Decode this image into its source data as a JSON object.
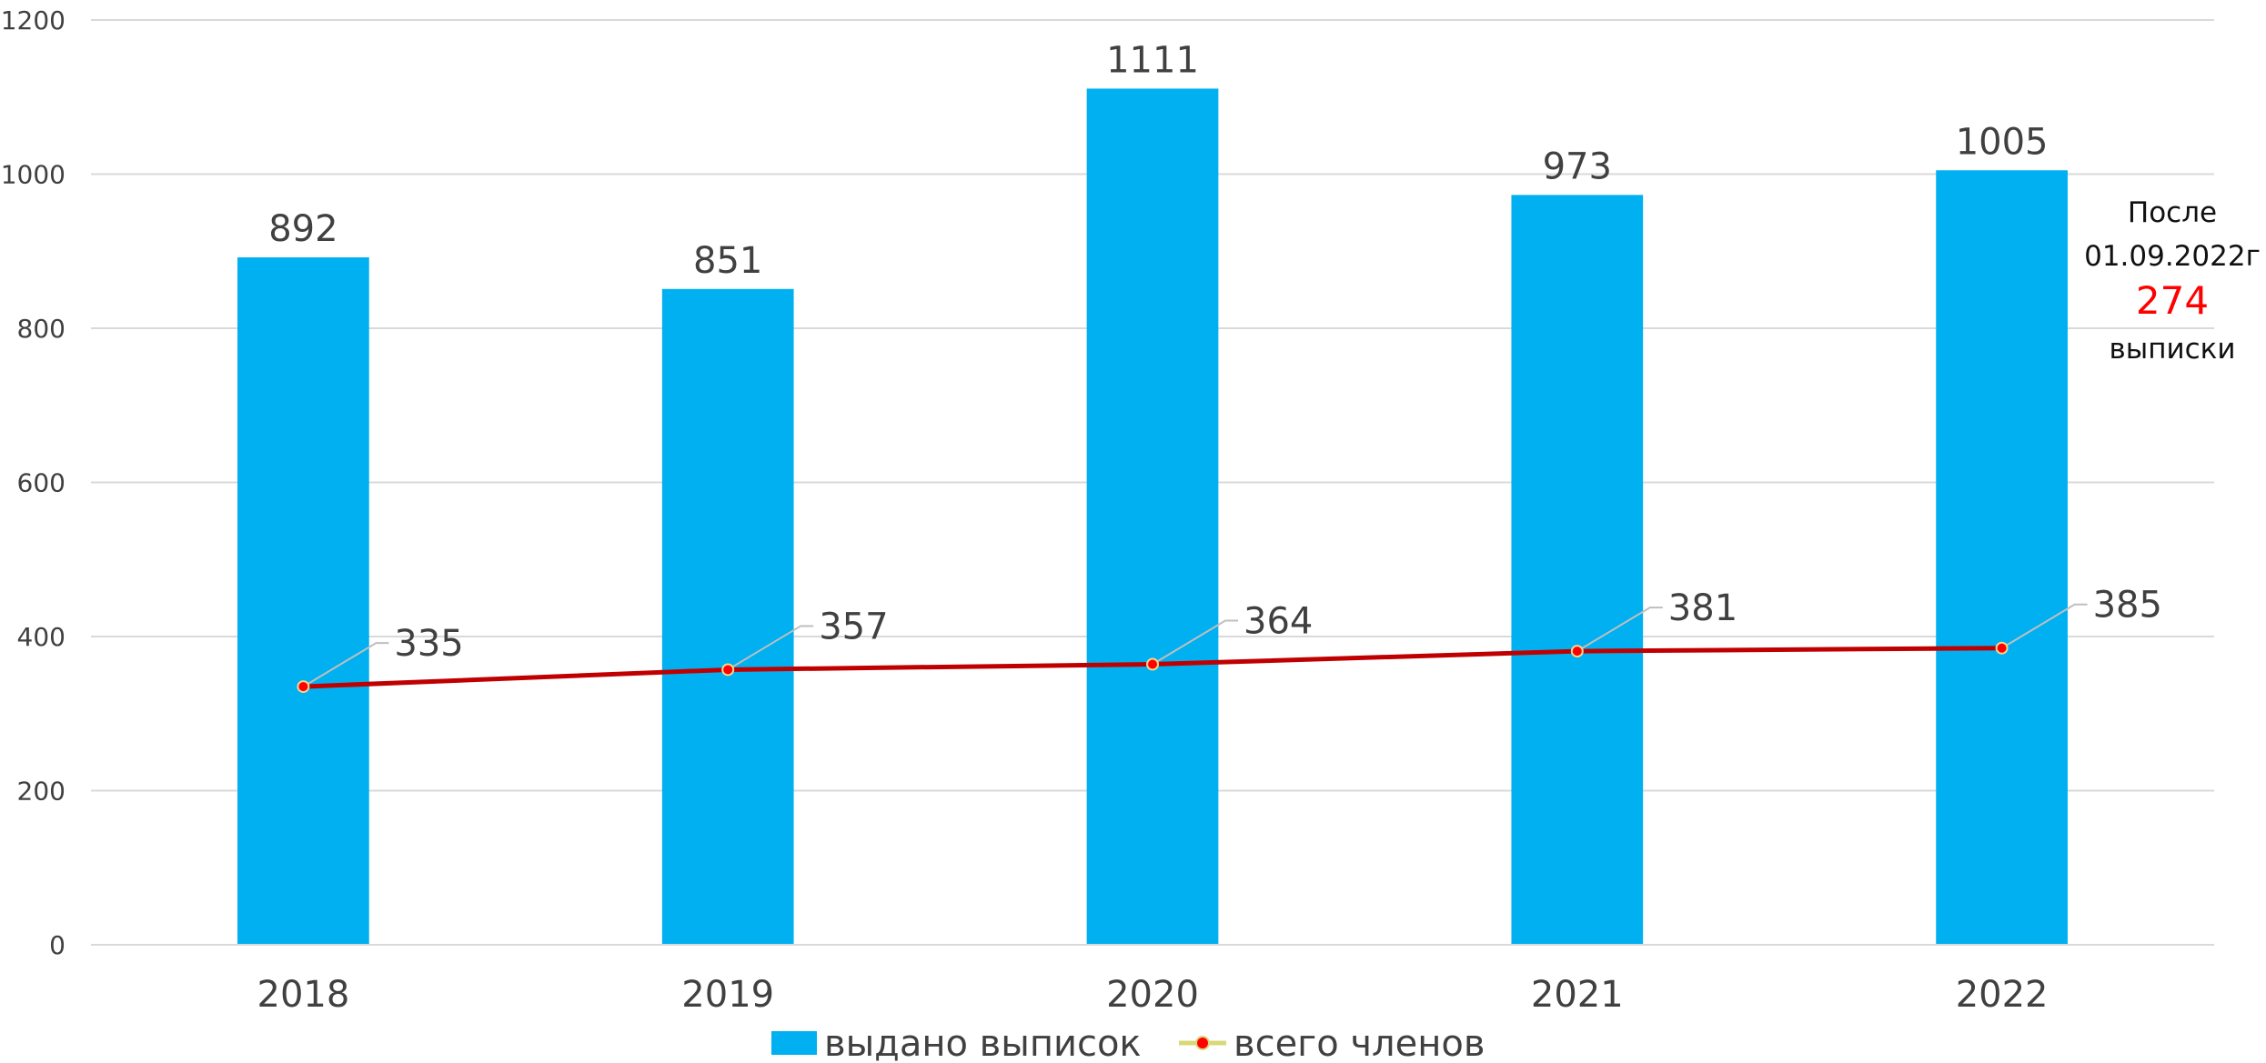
{
  "chart_data": {
    "type": "bar",
    "categories": [
      "2018",
      "2019",
      "2020",
      "2021",
      "2022"
    ],
    "series": [
      {
        "name": "выдано выписок",
        "type": "bar",
        "values": [
          892,
          851,
          1111,
          973,
          1005
        ],
        "color": "#00B0F0"
      },
      {
        "name": "всего членов",
        "type": "line",
        "values": [
          335,
          357,
          364,
          381,
          385
        ],
        "color": "#C00000",
        "marker_color": "#FF0000"
      }
    ],
    "bar_labels": [
      "892",
      "851",
      "1111",
      "973",
      "1005"
    ],
    "line_labels": [
      "335",
      "357",
      "364",
      "381",
      "385"
    ],
    "yticks": [
      "0",
      "200",
      "400",
      "600",
      "800",
      "1000",
      "1200"
    ],
    "ylim": [
      0,
      1200
    ],
    "grid": true,
    "legend_position": "bottom",
    "note": {
      "line1": "После",
      "line2": "01.09.2022г",
      "value": "274",
      "value_color": "#FF0000",
      "line3": "выписки"
    }
  }
}
